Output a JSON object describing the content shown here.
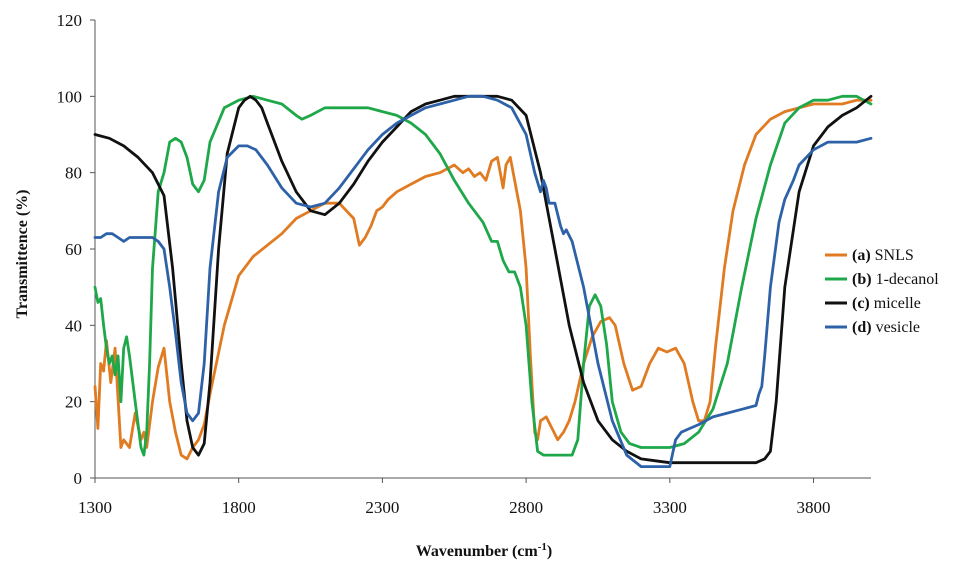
{
  "chart_data": {
    "type": "line",
    "xlabel": "Wavenumber (cm",
    "xlabel_sup": "-1",
    "xlabel_end": ")",
    "ylabel": "Transmittence (%)",
    "xlim": [
      1300,
      4000
    ],
    "ylim": [
      0,
      120
    ],
    "xticks": [
      1300,
      1800,
      2300,
      2800,
      3300,
      3800
    ],
    "yticks": [
      0,
      20,
      40,
      60,
      80,
      100,
      120
    ],
    "grid": false,
    "legend_position": "right",
    "series": [
      {
        "tag": "(a)",
        "name": "SNLS",
        "color": "#e07b22",
        "x": [
          1300,
          1310,
          1320,
          1330,
          1340,
          1355,
          1370,
          1390,
          1400,
          1420,
          1440,
          1460,
          1470,
          1480,
          1500,
          1520,
          1540,
          1560,
          1580,
          1600,
          1620,
          1640,
          1660,
          1680,
          1700,
          1750,
          1800,
          1850,
          1900,
          1950,
          2000,
          2050,
          2100,
          2150,
          2200,
          2220,
          2240,
          2260,
          2270,
          2280,
          2300,
          2320,
          2350,
          2400,
          2450,
          2500,
          2550,
          2580,
          2600,
          2620,
          2640,
          2660,
          2680,
          2700,
          2720,
          2730,
          2745,
          2760,
          2780,
          2800,
          2815,
          2830,
          2840,
          2850,
          2870,
          2890,
          2910,
          2930,
          2950,
          2970,
          3000,
          3030,
          3060,
          3090,
          3110,
          3140,
          3170,
          3200,
          3230,
          3260,
          3290,
          3320,
          3350,
          3380,
          3400,
          3420,
          3440,
          3460,
          3490,
          3520,
          3560,
          3600,
          3650,
          3700,
          3750,
          3800,
          3850,
          3900,
          3950,
          4000
        ],
        "y": [
          24,
          13,
          30,
          28,
          36,
          25,
          34,
          8,
          10,
          8,
          17,
          10,
          12,
          8,
          20,
          29,
          34,
          20,
          12,
          6,
          5,
          8,
          10,
          14,
          22,
          40,
          53,
          58,
          61,
          64,
          68,
          70,
          72,
          72,
          68,
          61,
          63,
          66,
          68,
          70,
          71,
          73,
          75,
          77,
          79,
          80,
          82,
          80,
          81,
          79,
          80,
          78,
          83,
          84,
          76,
          82,
          84,
          78,
          70,
          55,
          32,
          12,
          10,
          15,
          16,
          13,
          10,
          12,
          15,
          20,
          30,
          37,
          41,
          42,
          40,
          30,
          23,
          24,
          30,
          34,
          33,
          34,
          30,
          20,
          15,
          15,
          20,
          35,
          55,
          70,
          82,
          90,
          94,
          96,
          97,
          98,
          98,
          98,
          99,
          99
        ]
      },
      {
        "tag": "(b)",
        "name": "1-decanol",
        "color": "#1fa84a",
        "x": [
          1300,
          1310,
          1320,
          1330,
          1340,
          1350,
          1360,
          1370,
          1380,
          1390,
          1400,
          1410,
          1420,
          1440,
          1460,
          1470,
          1480,
          1490,
          1500,
          1510,
          1520,
          1540,
          1560,
          1580,
          1600,
          1620,
          1640,
          1660,
          1680,
          1700,
          1750,
          1800,
          1850,
          1900,
          1950,
          2000,
          2020,
          2050,
          2100,
          2150,
          2200,
          2250,
          2300,
          2350,
          2400,
          2450,
          2500,
          2550,
          2600,
          2650,
          2680,
          2700,
          2720,
          2740,
          2760,
          2780,
          2800,
          2820,
          2840,
          2860,
          2880,
          2900,
          2920,
          2940,
          2960,
          2980,
          3000,
          3020,
          3040,
          3060,
          3080,
          3100,
          3130,
          3160,
          3200,
          3250,
          3300,
          3350,
          3400,
          3450,
          3500,
          3550,
          3600,
          3650,
          3700,
          3750,
          3800,
          3850,
          3900,
          3950,
          3975,
          4000
        ],
        "y": [
          50,
          46,
          47,
          40,
          34,
          30,
          32,
          27,
          32,
          20,
          34,
          37,
          32,
          20,
          8,
          6,
          12,
          30,
          55,
          65,
          75,
          80,
          88,
          89,
          88,
          84,
          77,
          75,
          78,
          88,
          97,
          99,
          100,
          99,
          98,
          95,
          94,
          95,
          97,
          97,
          97,
          97,
          96,
          95,
          93,
          90,
          85,
          78,
          72,
          67,
          62,
          62,
          57,
          54,
          54,
          50,
          40,
          20,
          7,
          6,
          6,
          6,
          6,
          6,
          6,
          10,
          30,
          45,
          48,
          45,
          35,
          20,
          12,
          9,
          8,
          8,
          8,
          9,
          12,
          18,
          30,
          50,
          68,
          82,
          93,
          97,
          99,
          99,
          100,
          100,
          99,
          98
        ]
      },
      {
        "tag": "(c)",
        "name": "micelle",
        "color": "#111111",
        "x": [
          1300,
          1350,
          1400,
          1450,
          1500,
          1540,
          1570,
          1600,
          1620,
          1640,
          1660,
          1680,
          1700,
          1730,
          1760,
          1800,
          1820,
          1840,
          1860,
          1880,
          1900,
          1950,
          2000,
          2050,
          2100,
          2150,
          2200,
          2250,
          2300,
          2350,
          2400,
          2450,
          2500,
          2550,
          2600,
          2650,
          2700,
          2750,
          2800,
          2850,
          2900,
          2950,
          3000,
          3050,
          3100,
          3150,
          3200,
          3250,
          3300,
          3350,
          3400,
          3450,
          3500,
          3550,
          3600,
          3630,
          3650,
          3670,
          3700,
          3750,
          3800,
          3850,
          3900,
          3950,
          4000
        ],
        "y": [
          90,
          89,
          87,
          84,
          80,
          74,
          55,
          30,
          15,
          8,
          6,
          9,
          25,
          60,
          85,
          97,
          99,
          100,
          99,
          97,
          93,
          83,
          75,
          70,
          69,
          72,
          77,
          83,
          88,
          92,
          96,
          98,
          99,
          100,
          100,
          100,
          100,
          99,
          95,
          80,
          60,
          40,
          25,
          15,
          10,
          7,
          5,
          4.5,
          4,
          4,
          4,
          4,
          4,
          4,
          4,
          5,
          7,
          20,
          50,
          75,
          87,
          92,
          95,
          97,
          100
        ]
      },
      {
        "tag": "(d)",
        "name": "vesicle",
        "color": "#2e62a8",
        "x": [
          1300,
          1320,
          1340,
          1360,
          1380,
          1400,
          1420,
          1440,
          1460,
          1480,
          1500,
          1520,
          1540,
          1560,
          1580,
          1600,
          1620,
          1640,
          1660,
          1680,
          1700,
          1730,
          1760,
          1800,
          1830,
          1860,
          1900,
          1950,
          2000,
          2050,
          2100,
          2150,
          2200,
          2250,
          2300,
          2350,
          2400,
          2450,
          2500,
          2550,
          2600,
          2650,
          2700,
          2750,
          2800,
          2830,
          2850,
          2860,
          2870,
          2880,
          2900,
          2920,
          2930,
          2940,
          2960,
          3000,
          3050,
          3100,
          3150,
          3200,
          3250,
          3300,
          3320,
          3340,
          3370,
          3400,
          3450,
          3500,
          3550,
          3600,
          3610,
          3620,
          3630,
          3650,
          3680,
          3700,
          3730,
          3750,
          3800,
          3850,
          3900,
          3950,
          4000
        ],
        "y": [
          63,
          63,
          64,
          64,
          63,
          62,
          63,
          63,
          63,
          63,
          63,
          62,
          60,
          50,
          38,
          25,
          17,
          15,
          17,
          30,
          55,
          75,
          84,
          87,
          87,
          86,
          82,
          76,
          72,
          71,
          72,
          76,
          81,
          86,
          90,
          93,
          95,
          97,
          98,
          99,
          100,
          100,
          99,
          97,
          90,
          80,
          75,
          78,
          76,
          72,
          72,
          66,
          64,
          65,
          62,
          50,
          30,
          15,
          6,
          3,
          3,
          3,
          10,
          12,
          13,
          14,
          16,
          17,
          18,
          19,
          22,
          24,
          32,
          50,
          67,
          73,
          78,
          82,
          86,
          88,
          88,
          88,
          89
        ]
      }
    ]
  }
}
